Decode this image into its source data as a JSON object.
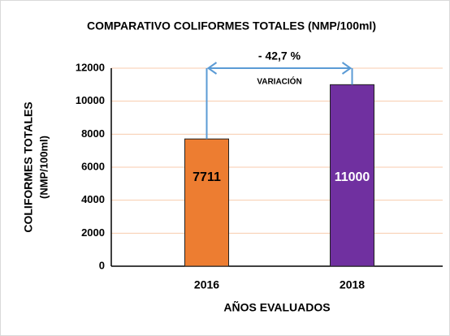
{
  "chart_data": {
    "type": "bar",
    "title": "COMPARATIVO COLIFORMES TOTALES (NMP/100ml)",
    "ylabel": [
      "COLIFORMES TOTALES",
      "(NMP/100ml)"
    ],
    "xlabel": "AÑOS EVALUADOS",
    "categories": [
      "2016",
      "2018"
    ],
    "values": [
      7711,
      11000
    ],
    "colors": [
      "#ed7d31",
      "#7030a0"
    ],
    "value_label_colors": [
      "#000000",
      "#ffffff"
    ],
    "ylim": [
      0,
      12000
    ],
    "yticks": [
      0,
      2000,
      4000,
      6000,
      8000,
      10000,
      12000
    ],
    "grid": true,
    "annotations": [
      "- 42,7 %",
      "VARIACIÓN"
    ]
  }
}
